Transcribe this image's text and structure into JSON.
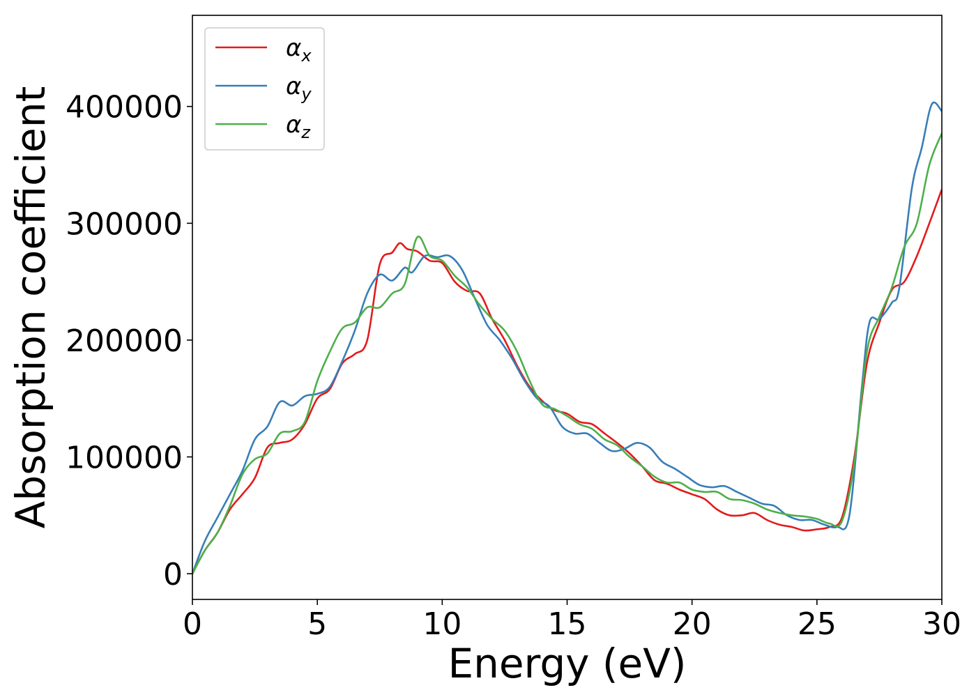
{
  "chart_data": {
    "type": "line",
    "xlabel": "Energy (eV)",
    "ylabel": "Absorption coefficient",
    "xlim": [
      0,
      30
    ],
    "ylim": [
      -22000,
      478000
    ],
    "x_ticks": [
      0,
      5,
      10,
      15,
      20,
      25,
      30
    ],
    "y_ticks": [
      0,
      100000,
      200000,
      300000,
      400000
    ],
    "grid": false,
    "legend_position": "top-left",
    "series": [
      {
        "name": "α",
        "subscript": "x",
        "color": "#e41a1c",
        "points": [
          [
            0,
            0
          ],
          [
            0.5,
            20000
          ],
          [
            1,
            35000
          ],
          [
            1.5,
            55000
          ],
          [
            2,
            68000
          ],
          [
            2.5,
            82000
          ],
          [
            3,
            108000
          ],
          [
            3.5,
            112000
          ],
          [
            4,
            115000
          ],
          [
            4.5,
            128000
          ],
          [
            5,
            150000
          ],
          [
            5.5,
            158000
          ],
          [
            6,
            180000
          ],
          [
            6.5,
            188000
          ],
          [
            7,
            200000
          ],
          [
            7.5,
            265000
          ],
          [
            8,
            275000
          ],
          [
            8.3,
            283000
          ],
          [
            8.6,
            278000
          ],
          [
            9,
            276000
          ],
          [
            9.5,
            268000
          ],
          [
            10,
            266000
          ],
          [
            10.5,
            250000
          ],
          [
            11,
            242000
          ],
          [
            11.5,
            240000
          ],
          [
            12,
            218000
          ],
          [
            12.5,
            200000
          ],
          [
            13,
            178000
          ],
          [
            13.5,
            160000
          ],
          [
            14,
            148000
          ],
          [
            14.5,
            140000
          ],
          [
            15,
            137000
          ],
          [
            15.5,
            130000
          ],
          [
            16,
            128000
          ],
          [
            16.5,
            120000
          ],
          [
            17,
            112000
          ],
          [
            17.5,
            103000
          ],
          [
            18,
            92000
          ],
          [
            18.5,
            80000
          ],
          [
            19,
            77000
          ],
          [
            19.5,
            72000
          ],
          [
            20,
            68000
          ],
          [
            20.5,
            64000
          ],
          [
            21,
            55000
          ],
          [
            21.5,
            50000
          ],
          [
            22,
            50000
          ],
          [
            22.5,
            52000
          ],
          [
            23,
            46000
          ],
          [
            23.5,
            42000
          ],
          [
            24,
            40000
          ],
          [
            24.5,
            37000
          ],
          [
            25,
            38000
          ],
          [
            25.5,
            40000
          ],
          [
            26,
            48000
          ],
          [
            26.5,
            100000
          ],
          [
            27,
            180000
          ],
          [
            27.5,
            215000
          ],
          [
            28,
            243000
          ],
          [
            28.5,
            250000
          ],
          [
            29,
            272000
          ],
          [
            29.5,
            300000
          ],
          [
            30,
            329000
          ]
        ]
      },
      {
        "name": "α",
        "subscript": "y",
        "color": "#377eb8",
        "points": [
          [
            0,
            0
          ],
          [
            0.5,
            28000
          ],
          [
            1,
            48000
          ],
          [
            1.5,
            68000
          ],
          [
            2,
            88000
          ],
          [
            2.5,
            115000
          ],
          [
            3,
            126000
          ],
          [
            3.5,
            147000
          ],
          [
            4,
            144000
          ],
          [
            4.5,
            152000
          ],
          [
            5,
            154000
          ],
          [
            5.5,
            160000
          ],
          [
            6,
            182000
          ],
          [
            6.5,
            208000
          ],
          [
            7,
            240000
          ],
          [
            7.5,
            256000
          ],
          [
            8,
            251000
          ],
          [
            8.5,
            262000
          ],
          [
            8.8,
            258000
          ],
          [
            9.3,
            272000
          ],
          [
            9.8,
            271000
          ],
          [
            10.3,
            272000
          ],
          [
            10.8,
            260000
          ],
          [
            11.3,
            236000
          ],
          [
            11.8,
            213000
          ],
          [
            12.3,
            200000
          ],
          [
            12.8,
            184000
          ],
          [
            13.3,
            165000
          ],
          [
            13.8,
            150000
          ],
          [
            14.3,
            143000
          ],
          [
            14.8,
            126000
          ],
          [
            15.3,
            120000
          ],
          [
            15.8,
            120000
          ],
          [
            16.3,
            112000
          ],
          [
            16.8,
            105000
          ],
          [
            17.3,
            107000
          ],
          [
            17.8,
            112000
          ],
          [
            18.3,
            108000
          ],
          [
            18.8,
            96000
          ],
          [
            19.3,
            90000
          ],
          [
            19.8,
            83000
          ],
          [
            20.3,
            76000
          ],
          [
            20.8,
            74000
          ],
          [
            21.3,
            75000
          ],
          [
            21.8,
            70000
          ],
          [
            22.3,
            65000
          ],
          [
            22.8,
            60000
          ],
          [
            23.3,
            58000
          ],
          [
            23.8,
            50000
          ],
          [
            24.3,
            46000
          ],
          [
            24.8,
            46000
          ],
          [
            25.3,
            42000
          ],
          [
            25.8,
            40000
          ],
          [
            26.3,
            50000
          ],
          [
            26.8,
            160000
          ],
          [
            27.1,
            215000
          ],
          [
            27.5,
            218000
          ],
          [
            28,
            232000
          ],
          [
            28.3,
            245000
          ],
          [
            28.8,
            330000
          ],
          [
            29.2,
            365000
          ],
          [
            29.6,
            402000
          ],
          [
            30,
            396000
          ]
        ]
      },
      {
        "name": "α",
        "subscript": "z",
        "color": "#4daf4a",
        "points": [
          [
            0,
            0
          ],
          [
            0.5,
            20000
          ],
          [
            1,
            35000
          ],
          [
            1.5,
            58000
          ],
          [
            2,
            85000
          ],
          [
            2.5,
            98000
          ],
          [
            3,
            103000
          ],
          [
            3.5,
            120000
          ],
          [
            4,
            122000
          ],
          [
            4.5,
            130000
          ],
          [
            5,
            165000
          ],
          [
            5.5,
            190000
          ],
          [
            6,
            210000
          ],
          [
            6.5,
            215000
          ],
          [
            7,
            228000
          ],
          [
            7.5,
            228000
          ],
          [
            8,
            240000
          ],
          [
            8.5,
            248000
          ],
          [
            9,
            288000
          ],
          [
            9.5,
            272000
          ],
          [
            10,
            268000
          ],
          [
            10.5,
            255000
          ],
          [
            11,
            245000
          ],
          [
            11.5,
            230000
          ],
          [
            12,
            218000
          ],
          [
            12.5,
            208000
          ],
          [
            13,
            190000
          ],
          [
            13.5,
            165000
          ],
          [
            14,
            145000
          ],
          [
            14.5,
            141000
          ],
          [
            15,
            135000
          ],
          [
            15.5,
            128000
          ],
          [
            16,
            124000
          ],
          [
            16.5,
            115000
          ],
          [
            17,
            110000
          ],
          [
            17.5,
            100000
          ],
          [
            18,
            92000
          ],
          [
            18.5,
            83000
          ],
          [
            19,
            78000
          ],
          [
            19.5,
            78000
          ],
          [
            20,
            72000
          ],
          [
            20.5,
            70000
          ],
          [
            21,
            70000
          ],
          [
            21.5,
            64000
          ],
          [
            22,
            63000
          ],
          [
            22.5,
            60000
          ],
          [
            23,
            55000
          ],
          [
            23.5,
            52000
          ],
          [
            24,
            50000
          ],
          [
            24.5,
            49000
          ],
          [
            25,
            47000
          ],
          [
            25.5,
            43000
          ],
          [
            26,
            45000
          ],
          [
            26.5,
            95000
          ],
          [
            27,
            190000
          ],
          [
            27.5,
            220000
          ],
          [
            28,
            245000
          ],
          [
            28.5,
            280000
          ],
          [
            29,
            300000
          ],
          [
            29.5,
            350000
          ],
          [
            30,
            377000
          ]
        ]
      }
    ]
  }
}
